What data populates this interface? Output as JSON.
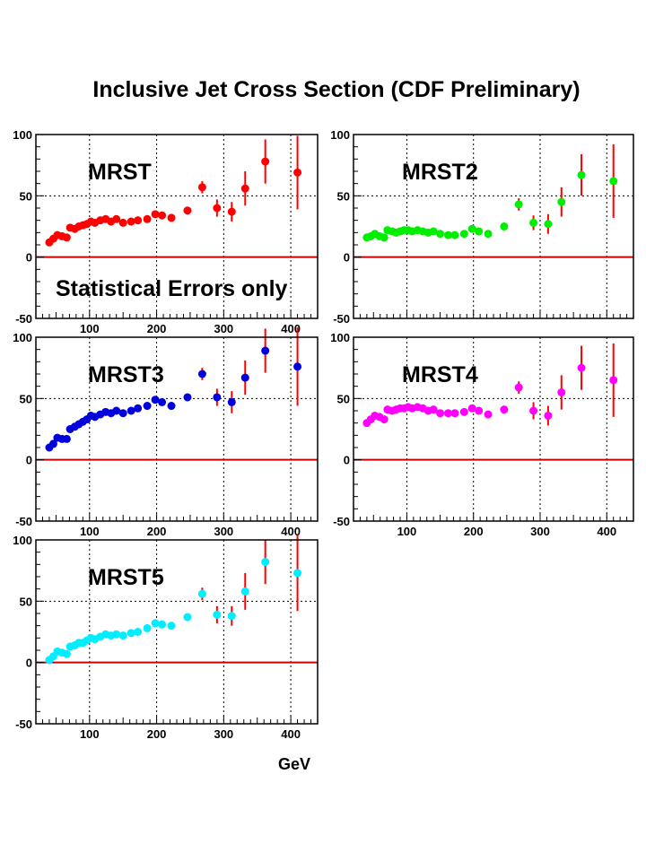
{
  "title": "Inclusive Jet Cross Section (CDF Preliminary)",
  "x_unit_label": "GeV",
  "colors": {
    "error_bar": "#ff0000",
    "zero_line": "#cc0000",
    "frame": "#000000",
    "grid": "#000000"
  },
  "chart_data": [
    {
      "type": "scatter",
      "label": "MRST",
      "annotation": "Statistical Errors only",
      "color": "#ff0000",
      "xlim": [
        20,
        440
      ],
      "ylim": [
        -50,
        100
      ],
      "x_ticks": [
        "100",
        "200",
        "300",
        "400"
      ],
      "y_ticks": [
        "100",
        "50",
        "0",
        "-50"
      ],
      "grid": true,
      "points": [
        {
          "x": 40,
          "y": 12,
          "e": 3
        },
        {
          "x": 46,
          "y": 15,
          "e": 3
        },
        {
          "x": 52,
          "y": 18,
          "e": 3
        },
        {
          "x": 59,
          "y": 17,
          "e": 3
        },
        {
          "x": 66,
          "y": 16,
          "e": 3
        },
        {
          "x": 71,
          "y": 24,
          "e": 3
        },
        {
          "x": 78,
          "y": 23,
          "e": 3
        },
        {
          "x": 84,
          "y": 25,
          "e": 3
        },
        {
          "x": 90,
          "y": 26,
          "e": 3
        },
        {
          "x": 96,
          "y": 27,
          "e": 3
        },
        {
          "x": 102,
          "y": 29,
          "e": 3
        },
        {
          "x": 108,
          "y": 28,
          "e": 3
        },
        {
          "x": 116,
          "y": 30,
          "e": 3
        },
        {
          "x": 124,
          "y": 31,
          "e": 3
        },
        {
          "x": 132,
          "y": 29,
          "e": 3
        },
        {
          "x": 140,
          "y": 31,
          "e": 3
        },
        {
          "x": 150,
          "y": 28,
          "e": 3
        },
        {
          "x": 162,
          "y": 29,
          "e": 3
        },
        {
          "x": 172,
          "y": 30,
          "e": 3
        },
        {
          "x": 186,
          "y": 31,
          "e": 3
        },
        {
          "x": 198,
          "y": 35,
          "e": 3
        },
        {
          "x": 208,
          "y": 34,
          "e": 3
        },
        {
          "x": 222,
          "y": 32,
          "e": 3
        },
        {
          "x": 246,
          "y": 38,
          "e": 3
        },
        {
          "x": 268,
          "y": 57,
          "e": 5
        },
        {
          "x": 290,
          "y": 40,
          "e": 7
        },
        {
          "x": 312,
          "y": 37,
          "e": 8
        },
        {
          "x": 332,
          "y": 56,
          "e": 14
        },
        {
          "x": 362,
          "y": 78,
          "e": 18
        },
        {
          "x": 410,
          "y": 69,
          "e": 30
        }
      ]
    },
    {
      "type": "scatter",
      "label": "MRST2",
      "color": "#00ee00",
      "xlim": [
        20,
        440
      ],
      "ylim": [
        -50,
        100
      ],
      "x_ticks": [],
      "y_ticks": [
        "100",
        "50",
        "0",
        "-50"
      ],
      "grid": true,
      "points": [
        {
          "x": 40,
          "y": 16,
          "e": 3
        },
        {
          "x": 46,
          "y": 17,
          "e": 3
        },
        {
          "x": 52,
          "y": 19,
          "e": 3
        },
        {
          "x": 59,
          "y": 17,
          "e": 3
        },
        {
          "x": 66,
          "y": 16,
          "e": 3
        },
        {
          "x": 71,
          "y": 22,
          "e": 3
        },
        {
          "x": 78,
          "y": 21,
          "e": 3
        },
        {
          "x": 84,
          "y": 20,
          "e": 3
        },
        {
          "x": 90,
          "y": 21,
          "e": 3
        },
        {
          "x": 96,
          "y": 22,
          "e": 3
        },
        {
          "x": 102,
          "y": 22,
          "e": 3
        },
        {
          "x": 108,
          "y": 21,
          "e": 3
        },
        {
          "x": 116,
          "y": 22,
          "e": 3
        },
        {
          "x": 124,
          "y": 21,
          "e": 3
        },
        {
          "x": 132,
          "y": 20,
          "e": 3
        },
        {
          "x": 140,
          "y": 21,
          "e": 3
        },
        {
          "x": 150,
          "y": 19,
          "e": 3
        },
        {
          "x": 162,
          "y": 18,
          "e": 3
        },
        {
          "x": 172,
          "y": 18,
          "e": 3
        },
        {
          "x": 186,
          "y": 19,
          "e": 3
        },
        {
          "x": 198,
          "y": 23,
          "e": 3
        },
        {
          "x": 208,
          "y": 21,
          "e": 3
        },
        {
          "x": 222,
          "y": 19,
          "e": 3
        },
        {
          "x": 246,
          "y": 25,
          "e": 3
        },
        {
          "x": 268,
          "y": 43,
          "e": 5
        },
        {
          "x": 290,
          "y": 28,
          "e": 6
        },
        {
          "x": 312,
          "y": 27,
          "e": 8
        },
        {
          "x": 332,
          "y": 45,
          "e": 12
        },
        {
          "x": 362,
          "y": 67,
          "e": 17
        },
        {
          "x": 410,
          "y": 62,
          "e": 30
        }
      ]
    },
    {
      "type": "scatter",
      "label": "MRST3",
      "color": "#0000dd",
      "xlim": [
        20,
        440
      ],
      "ylim": [
        -50,
        100
      ],
      "x_ticks": [
        "100",
        "200",
        "300",
        "400"
      ],
      "y_ticks": [
        "100",
        "50",
        "0",
        "-50"
      ],
      "grid": true,
      "points": [
        {
          "x": 40,
          "y": 10,
          "e": 3
        },
        {
          "x": 46,
          "y": 13,
          "e": 3
        },
        {
          "x": 52,
          "y": 18,
          "e": 3
        },
        {
          "x": 59,
          "y": 17,
          "e": 3
        },
        {
          "x": 66,
          "y": 17,
          "e": 3
        },
        {
          "x": 71,
          "y": 25,
          "e": 3
        },
        {
          "x": 78,
          "y": 27,
          "e": 3
        },
        {
          "x": 84,
          "y": 29,
          "e": 3
        },
        {
          "x": 90,
          "y": 31,
          "e": 3
        },
        {
          "x": 96,
          "y": 33,
          "e": 3
        },
        {
          "x": 102,
          "y": 36,
          "e": 3
        },
        {
          "x": 108,
          "y": 35,
          "e": 3
        },
        {
          "x": 116,
          "y": 37,
          "e": 3
        },
        {
          "x": 124,
          "y": 39,
          "e": 3
        },
        {
          "x": 132,
          "y": 38,
          "e": 3
        },
        {
          "x": 140,
          "y": 40,
          "e": 3
        },
        {
          "x": 150,
          "y": 38,
          "e": 3
        },
        {
          "x": 162,
          "y": 40,
          "e": 3
        },
        {
          "x": 172,
          "y": 42,
          "e": 3
        },
        {
          "x": 186,
          "y": 44,
          "e": 3
        },
        {
          "x": 198,
          "y": 49,
          "e": 3
        },
        {
          "x": 208,
          "y": 47,
          "e": 3
        },
        {
          "x": 222,
          "y": 44,
          "e": 3
        },
        {
          "x": 246,
          "y": 51,
          "e": 3
        },
        {
          "x": 268,
          "y": 70,
          "e": 5
        },
        {
          "x": 290,
          "y": 51,
          "e": 7
        },
        {
          "x": 312,
          "y": 47,
          "e": 9
        },
        {
          "x": 332,
          "y": 67,
          "e": 14
        },
        {
          "x": 362,
          "y": 89,
          "e": 18
        },
        {
          "x": 410,
          "y": 76,
          "e": 32
        }
      ]
    },
    {
      "type": "scatter",
      "label": "MRST4",
      "color": "#ff00ff",
      "xlim": [
        20,
        440
      ],
      "ylim": [
        -50,
        100
      ],
      "x_ticks": [
        "100",
        "200",
        "300",
        "400"
      ],
      "y_ticks": [
        "100",
        "50",
        "0",
        "-50"
      ],
      "grid": true,
      "points": [
        {
          "x": 40,
          "y": 30,
          "e": 3
        },
        {
          "x": 46,
          "y": 33,
          "e": 3
        },
        {
          "x": 52,
          "y": 36,
          "e": 3
        },
        {
          "x": 59,
          "y": 35,
          "e": 3
        },
        {
          "x": 66,
          "y": 33,
          "e": 3
        },
        {
          "x": 71,
          "y": 41,
          "e": 3
        },
        {
          "x": 78,
          "y": 40,
          "e": 3
        },
        {
          "x": 84,
          "y": 41,
          "e": 3
        },
        {
          "x": 90,
          "y": 42,
          "e": 3
        },
        {
          "x": 96,
          "y": 42,
          "e": 3
        },
        {
          "x": 102,
          "y": 43,
          "e": 3
        },
        {
          "x": 108,
          "y": 42,
          "e": 3
        },
        {
          "x": 116,
          "y": 43,
          "e": 3
        },
        {
          "x": 124,
          "y": 42,
          "e": 3
        },
        {
          "x": 132,
          "y": 40,
          "e": 3
        },
        {
          "x": 140,
          "y": 41,
          "e": 3
        },
        {
          "x": 150,
          "y": 38,
          "e": 3
        },
        {
          "x": 162,
          "y": 38,
          "e": 3
        },
        {
          "x": 172,
          "y": 38,
          "e": 3
        },
        {
          "x": 186,
          "y": 39,
          "e": 3
        },
        {
          "x": 198,
          "y": 42,
          "e": 3
        },
        {
          "x": 208,
          "y": 40,
          "e": 3
        },
        {
          "x": 222,
          "y": 37,
          "e": 3
        },
        {
          "x": 246,
          "y": 41,
          "e": 3
        },
        {
          "x": 268,
          "y": 59,
          "e": 5
        },
        {
          "x": 290,
          "y": 40,
          "e": 7
        },
        {
          "x": 312,
          "y": 36,
          "e": 8
        },
        {
          "x": 332,
          "y": 55,
          "e": 14
        },
        {
          "x": 362,
          "y": 75,
          "e": 18
        },
        {
          "x": 410,
          "y": 65,
          "e": 30
        }
      ]
    },
    {
      "type": "scatter",
      "label": "MRST5",
      "color": "#00eeff",
      "xlim": [
        20,
        440
      ],
      "ylim": [
        -50,
        100
      ],
      "x_ticks": [
        "100",
        "200",
        "300",
        "400"
      ],
      "y_ticks": [
        "100",
        "50",
        "0",
        "-50"
      ],
      "grid": true,
      "points": [
        {
          "x": 40,
          "y": 2,
          "e": 3
        },
        {
          "x": 46,
          "y": 5,
          "e": 3
        },
        {
          "x": 52,
          "y": 9,
          "e": 3
        },
        {
          "x": 59,
          "y": 8,
          "e": 3
        },
        {
          "x": 66,
          "y": 7,
          "e": 3
        },
        {
          "x": 71,
          "y": 13,
          "e": 3
        },
        {
          "x": 78,
          "y": 14,
          "e": 3
        },
        {
          "x": 84,
          "y": 16,
          "e": 3
        },
        {
          "x": 90,
          "y": 16,
          "e": 3
        },
        {
          "x": 96,
          "y": 18,
          "e": 3
        },
        {
          "x": 102,
          "y": 20,
          "e": 3
        },
        {
          "x": 108,
          "y": 19,
          "e": 3
        },
        {
          "x": 116,
          "y": 21,
          "e": 3
        },
        {
          "x": 124,
          "y": 23,
          "e": 3
        },
        {
          "x": 132,
          "y": 22,
          "e": 3
        },
        {
          "x": 140,
          "y": 23,
          "e": 3
        },
        {
          "x": 150,
          "y": 22,
          "e": 3
        },
        {
          "x": 162,
          "y": 24,
          "e": 3
        },
        {
          "x": 172,
          "y": 25,
          "e": 3
        },
        {
          "x": 186,
          "y": 28,
          "e": 3
        },
        {
          "x": 198,
          "y": 32,
          "e": 3
        },
        {
          "x": 208,
          "y": 31,
          "e": 3
        },
        {
          "x": 222,
          "y": 30,
          "e": 3
        },
        {
          "x": 246,
          "y": 37,
          "e": 3
        },
        {
          "x": 268,
          "y": 56,
          "e": 5
        },
        {
          "x": 290,
          "y": 39,
          "e": 7
        },
        {
          "x": 312,
          "y": 38,
          "e": 8
        },
        {
          "x": 332,
          "y": 58,
          "e": 15
        },
        {
          "x": 362,
          "y": 82,
          "e": 18
        },
        {
          "x": 410,
          "y": 73,
          "e": 31
        }
      ]
    }
  ]
}
